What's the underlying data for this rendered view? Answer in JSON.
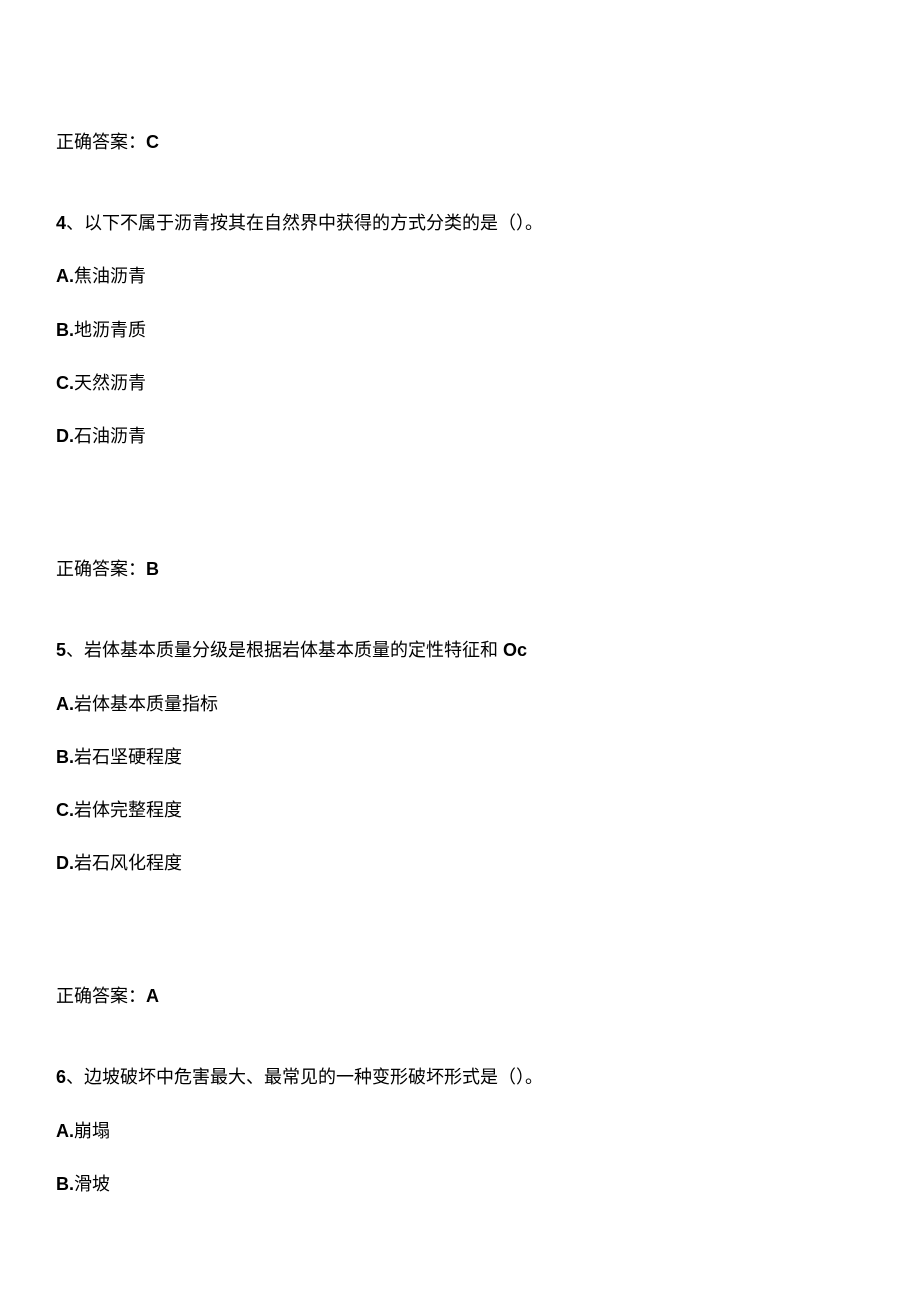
{
  "answer3": {
    "label": "正确答案：",
    "value": "C"
  },
  "q4": {
    "number": "4",
    "sep": "、",
    "stem": "以下不属于沥青按其在自然界中获得的方式分类的是（）。",
    "options": {
      "A": {
        "letter": "A.",
        "text": "焦油沥青"
      },
      "B": {
        "letter": "B.",
        "text": "地沥青质"
      },
      "C": {
        "letter": "C.",
        "text": "天然沥青"
      },
      "D": {
        "letter": "D.",
        "text": "石油沥青"
      }
    },
    "answer": {
      "label": "正确答案：",
      "value": "B"
    }
  },
  "q5": {
    "number": "5",
    "sep": "、",
    "stem_prefix": "岩体基本质量分级是根据岩体基本质量的定性特征和 ",
    "stem_bold": "Oc",
    "options": {
      "A": {
        "letter": "A.",
        "text": "岩体基本质量指标"
      },
      "B": {
        "letter": "B.",
        "text": "岩石坚硬程度"
      },
      "C": {
        "letter": "C.",
        "text": "岩体完整程度"
      },
      "D": {
        "letter": "D.",
        "text": "岩石风化程度"
      }
    },
    "answer": {
      "label": "正确答案：",
      "value": "A"
    }
  },
  "q6": {
    "number": "6",
    "sep": "、",
    "stem": "边坡破坏中危害最大、最常见的一种变形破坏形式是（）。",
    "options": {
      "A": {
        "letter": "A.",
        "text": "崩塌"
      },
      "B": {
        "letter": "B.",
        "text": "滑坡"
      }
    }
  }
}
